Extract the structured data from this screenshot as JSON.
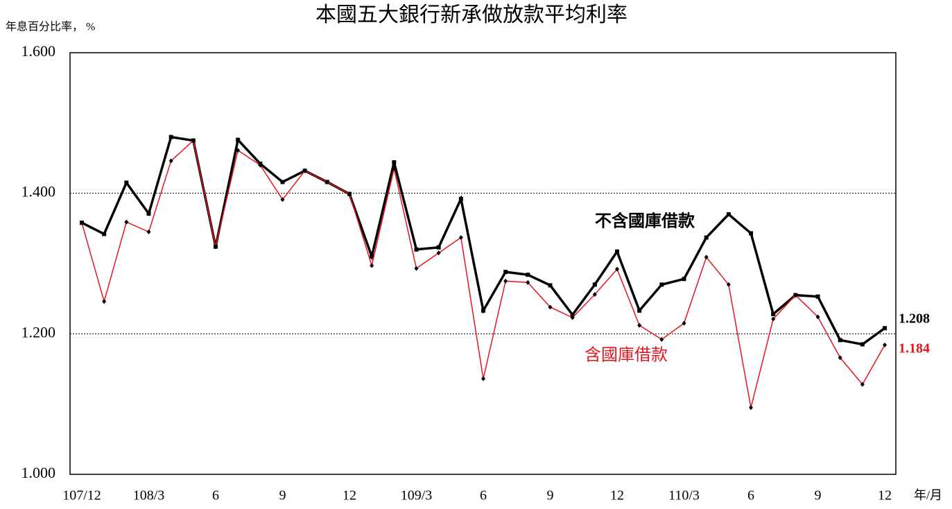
{
  "chart_data": {
    "type": "line",
    "title": "本國五大銀行新承做放款平均利率",
    "y_axis_label": "年息百分比率， %",
    "x_axis_label": "年/月",
    "categories": [
      "107/12",
      null,
      null,
      "108/3",
      null,
      null,
      "6",
      null,
      null,
      "9",
      null,
      null,
      "12",
      null,
      null,
      "109/3",
      null,
      null,
      "6",
      null,
      null,
      "9",
      null,
      null,
      "12",
      null,
      null,
      "110/3",
      null,
      null,
      "6",
      null,
      null,
      "9",
      null,
      null,
      "12"
    ],
    "series": [
      {
        "name": "不含國庫借款",
        "color": "#000000",
        "values": [
          1.358,
          1.342,
          1.415,
          1.371,
          1.48,
          1.475,
          1.324,
          1.476,
          1.442,
          1.416,
          1.432,
          1.416,
          1.399,
          1.31,
          1.444,
          1.32,
          1.323,
          1.392,
          1.233,
          1.288,
          1.284,
          1.269,
          1.227,
          1.27,
          1.317,
          1.233,
          1.27,
          1.278,
          1.337,
          1.37,
          1.343,
          1.228,
          1.255,
          1.253,
          1.191,
          1.185,
          1.208
        ]
      },
      {
        "name": "含國庫借款",
        "color": "#e8141c",
        "values": [
          1.358,
          1.246,
          1.359,
          1.345,
          1.446,
          1.475,
          1.324,
          1.461,
          1.44,
          1.391,
          1.432,
          1.416,
          1.399,
          1.297,
          1.435,
          1.293,
          1.315,
          1.337,
          1.136,
          1.275,
          1.273,
          1.238,
          1.223,
          1.256,
          1.292,
          1.212,
          1.192,
          1.215,
          1.309,
          1.27,
          1.095,
          1.221,
          1.255,
          1.224,
          1.166,
          1.128,
          1.184
        ]
      }
    ],
    "ylim": [
      1.0,
      1.6
    ],
    "yticks": [
      {
        "value": 1.0,
        "label": "1.000"
      },
      {
        "value": 1.2,
        "label": "1.200"
      },
      {
        "value": 1.4,
        "label": "1.400"
      },
      {
        "value": 1.6,
        "label": "1.600"
      }
    ],
    "grid": true
  }
}
